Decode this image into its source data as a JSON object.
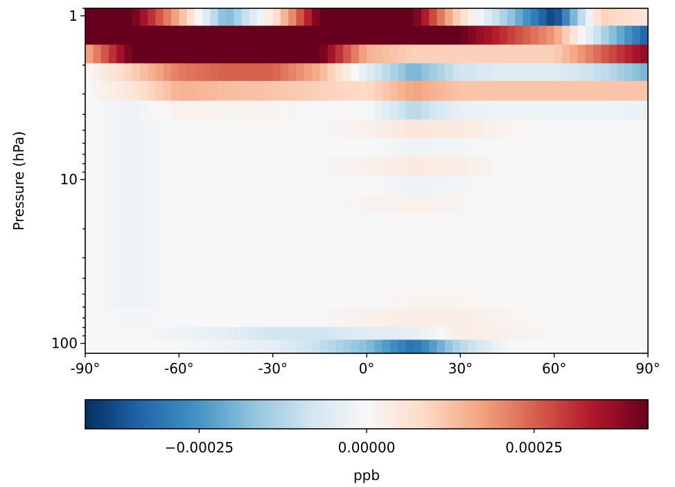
{
  "chart_data": {
    "type": "heatmap",
    "title": "",
    "xlabel": "",
    "ylabel": "Pressure (hPa)",
    "x_scale": "linear",
    "y_scale": "log",
    "y_inverted": true,
    "xlim": [
      -90,
      90
    ],
    "ylim": [
      0.9,
      115
    ],
    "x_ticks": [
      -90,
      -60,
      -30,
      0,
      30,
      60,
      90
    ],
    "x_tick_labels": [
      "-90°",
      "-60°",
      "-30°",
      "0°",
      "30°",
      "60°",
      "90°"
    ],
    "y_ticks": [
      1,
      10,
      100
    ],
    "y_tick_labels": [
      "1",
      "10",
      "100"
    ],
    "colorbar": {
      "label": "ppb",
      "colormap": "RdBu_r",
      "vmin": -0.00042,
      "vmax": 0.00042,
      "ticks": [
        -0.00025,
        0,
        0.00025
      ],
      "tick_labels": [
        "−0.00025",
        "0.00000",
        "0.00025"
      ],
      "colors": [
        "#053061",
        "#2166ac",
        "#4393c3",
        "#92c5de",
        "#d1e5f0",
        "#f7f7f7",
        "#fddbc7",
        "#f4a582",
        "#d6604d",
        "#b2182b",
        "#67001f"
      ]
    },
    "grid": false,
    "latitudes": [
      -90,
      -75,
      -60,
      -45,
      -30,
      -15,
      0,
      15,
      30,
      45,
      60,
      75,
      90
    ],
    "rows": [
      {
        "p_top": 0.9,
        "p_bot": 1.15,
        "values": [
          0.00042,
          0.00042,
          0.00015,
          -0.0002,
          5e-05,
          0.00042,
          0.00042,
          0.00042,
          8e-05,
          -0.00015,
          -0.0004,
          0.0001,
          5e-05
        ]
      },
      {
        "p_top": 1.15,
        "p_bot": 1.5,
        "values": [
          0.00042,
          0.00042,
          0.00042,
          0.00042,
          0.00042,
          0.00042,
          0.00042,
          0.00042,
          0.00042,
          0.0003,
          0.00018,
          -0.00012,
          -0.00035
        ]
      },
      {
        "p_top": 1.5,
        "p_bot": 1.95,
        "values": [
          0.00015,
          0.00042,
          0.00042,
          0.00042,
          0.00042,
          0.00042,
          0.00015,
          0.0001,
          0.0001,
          0.0001,
          0.0001,
          0.00025,
          0.00038
        ]
      },
      {
        "p_top": 1.95,
        "p_bot": 2.5,
        "values": [
          0.0,
          0.0001,
          0.00022,
          0.00025,
          0.00025,
          0.00015,
          -5e-05,
          -0.0002,
          -8e-05,
          -5e-05,
          -5e-05,
          -0.0001,
          -0.0002
        ]
      },
      {
        "p_top": 2.5,
        "p_bot": 3.3,
        "values": [
          0.0,
          5e-05,
          0.00015,
          0.00013,
          0.00012,
          0.0001,
          8e-05,
          0.00017,
          0.00012,
          0.00012,
          0.00012,
          0.00012,
          0.00012
        ]
      },
      {
        "p_top": 3.3,
        "p_bot": 4.3,
        "values": [
          0.0,
          -2e-05,
          2e-05,
          1e-05,
          1e-05,
          0.0,
          0.0,
          -0.00012,
          -3e-05,
          -2e-05,
          -2e-05,
          -2e-05,
          -3e-05
        ]
      },
      {
        "p_top": 4.3,
        "p_bot": 5.6,
        "values": [
          0.0,
          -2e-05,
          0.0,
          0.0,
          0.0,
          0.0,
          2e-05,
          5e-05,
          4e-05,
          1e-05,
          0.0,
          0.0,
          0.0
        ]
      },
      {
        "p_top": 5.6,
        "p_bot": 7.3,
        "values": [
          0.0,
          -2e-05,
          0.0,
          0.0,
          0.0,
          0.0,
          0.0,
          -2e-05,
          -1e-05,
          0.0,
          0.0,
          0.0,
          0.0
        ]
      },
      {
        "p_top": 7.3,
        "p_bot": 9.5,
        "values": [
          0.0,
          -2e-05,
          0.0,
          0.0,
          0.0,
          0.0,
          2e-05,
          4e-05,
          3e-05,
          0.0,
          0.0,
          0.0,
          0.0
        ]
      },
      {
        "p_top": 9.5,
        "p_bot": 12.4,
        "values": [
          0.0,
          -2e-05,
          0.0,
          0.0,
          0.0,
          0.0,
          0.0,
          -2e-05,
          -1e-05,
          0.0,
          0.0,
          0.0,
          0.0
        ]
      },
      {
        "p_top": 12.4,
        "p_bot": 16.2,
        "values": [
          0.0,
          -2e-05,
          0.0,
          0.0,
          0.0,
          0.0,
          1e-05,
          2e-05,
          1e-05,
          0.0,
          0.0,
          0.0,
          0.0
        ]
      },
      {
        "p_top": 16.2,
        "p_bot": 21.1,
        "values": [
          0.0,
          -2e-05,
          0.0,
          0.0,
          0.0,
          0.0,
          0.0,
          0.0,
          0.0,
          0.0,
          0.0,
          0.0,
          0.0
        ]
      },
      {
        "p_top": 21.1,
        "p_bot": 27.5,
        "values": [
          0.0,
          -2e-05,
          0.0,
          0.0,
          0.0,
          0.0,
          0.0,
          0.0,
          0.0,
          0.0,
          0.0,
          0.0,
          0.0
        ]
      },
      {
        "p_top": 27.5,
        "p_bot": 35.9,
        "values": [
          0.0,
          -2e-05,
          0.0,
          0.0,
          0.0,
          0.0,
          0.0,
          0.0,
          0.0,
          0.0,
          0.0,
          0.0,
          0.0
        ]
      },
      {
        "p_top": 35.9,
        "p_bot": 46.8,
        "values": [
          0.0,
          -2e-05,
          0.0,
          0.0,
          0.0,
          0.0,
          0.0,
          0.0,
          0.0,
          0.0,
          0.0,
          0.0,
          0.0
        ]
      },
      {
        "p_top": 46.8,
        "p_bot": 61.0,
        "values": [
          0.0,
          -2e-05,
          0.0,
          0.0,
          0.0,
          0.0,
          0.0,
          1e-05,
          1e-05,
          0.0,
          0.0,
          0.0,
          0.0
        ]
      },
      {
        "p_top": 61.0,
        "p_bot": 79.5,
        "values": [
          0.0,
          -1e-05,
          0.0,
          0.0,
          0.0,
          0.0,
          2e-05,
          3e-05,
          3e-05,
          1e-05,
          0.0,
          0.0,
          0.0
        ]
      },
      {
        "p_top": 79.5,
        "p_bot": 95.0,
        "values": [
          0.0,
          0.0,
          -2e-05,
          -4e-05,
          -8e-05,
          -8e-05,
          -5e-05,
          -4e-05,
          3e-05,
          2e-05,
          0.0,
          0.0,
          0.0
        ]
      },
      {
        "p_top": 95.0,
        "p_bot": 115.0,
        "values": [
          0.0,
          0.0,
          0.0,
          -2e-05,
          -4e-05,
          -0.0001,
          -0.00018,
          -0.00032,
          -0.00012,
          0.0,
          0.0,
          0.0,
          0.0
        ]
      }
    ]
  }
}
